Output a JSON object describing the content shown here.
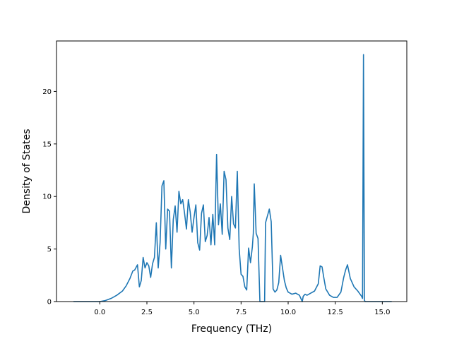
{
  "chart_data": {
    "type": "line",
    "title": "",
    "xlabel": "Frequency (THz)",
    "ylabel": "Density of States",
    "xlim": [
      -2.3,
      16.3
    ],
    "ylim": [
      0,
      24.8
    ],
    "grid": false,
    "xticks": [
      "0.0",
      "2.5",
      "5.0",
      "7.5",
      "10.0",
      "12.5",
      "15.0"
    ],
    "xtick_values": [
      0,
      2.5,
      5,
      7.5,
      10,
      12.5,
      15
    ],
    "yticks": [
      "0",
      "5",
      "10",
      "15",
      "20"
    ],
    "ytick_values": [
      0,
      5,
      10,
      15,
      20
    ],
    "series": [
      {
        "color": "#1f77b4",
        "x": [
          -1.4,
          -0.5,
          0.0,
          0.3,
          0.6,
          0.9,
          1.2,
          1.4,
          1.6,
          1.75,
          1.85,
          2.0,
          2.1,
          2.2,
          2.3,
          2.4,
          2.5,
          2.6,
          2.7,
          2.8,
          2.9,
          3.0,
          3.1,
          3.2,
          3.3,
          3.4,
          3.5,
          3.6,
          3.7,
          3.8,
          3.9,
          4.0,
          4.1,
          4.2,
          4.3,
          4.4,
          4.5,
          4.6,
          4.7,
          4.8,
          4.9,
          5.0,
          5.1,
          5.2,
          5.3,
          5.4,
          5.5,
          5.6,
          5.7,
          5.8,
          5.9,
          6.0,
          6.1,
          6.2,
          6.3,
          6.4,
          6.5,
          6.6,
          6.7,
          6.8,
          6.9,
          7.0,
          7.1,
          7.2,
          7.3,
          7.4,
          7.5,
          7.6,
          7.7,
          7.8,
          7.9,
          8.0,
          8.1,
          8.15,
          8.2,
          8.3,
          8.4,
          8.5,
          8.6,
          8.7,
          8.75,
          8.8,
          9.0,
          9.1,
          9.2,
          9.3,
          9.4,
          9.5,
          9.6,
          9.7,
          9.8,
          9.9,
          10.0,
          10.2,
          10.4,
          10.6,
          10.75,
          10.8,
          10.9,
          11.0,
          11.1,
          11.2,
          11.4,
          11.6,
          11.7,
          11.8,
          11.9,
          12.0,
          12.2,
          12.4,
          12.6,
          12.8,
          12.95,
          13.05,
          13.15,
          13.3,
          13.5,
          13.7,
          13.9,
          13.95,
          14.0,
          14.05,
          14.1,
          15.5
        ],
        "values": [
          0.0,
          0.0,
          0.0,
          0.1,
          0.3,
          0.6,
          1.0,
          1.5,
          2.2,
          2.9,
          3.0,
          3.5,
          1.4,
          2.0,
          4.2,
          3.2,
          3.7,
          3.4,
          2.3,
          3.6,
          4.2,
          7.5,
          3.2,
          5.6,
          11.0,
          11.5,
          5.0,
          8.8,
          8.6,
          3.2,
          7.8,
          9.1,
          6.6,
          10.5,
          9.3,
          9.7,
          8.4,
          6.9,
          9.7,
          8.5,
          6.6,
          8.0,
          9.2,
          5.6,
          4.9,
          8.4,
          9.2,
          5.7,
          6.3,
          8.0,
          5.4,
          8.3,
          5.4,
          14.0,
          7.3,
          9.3,
          6.4,
          12.4,
          11.6,
          7.0,
          5.9,
          10.0,
          7.4,
          7.0,
          12.4,
          5.0,
          2.6,
          2.4,
          1.4,
          1.1,
          5.1,
          3.7,
          5.2,
          6.5,
          11.2,
          6.5,
          6.0,
          0.0,
          0.0,
          0.0,
          0.0,
          7.5,
          8.8,
          7.6,
          1.2,
          0.9,
          1.1,
          1.8,
          4.4,
          3.2,
          2.0,
          1.3,
          0.9,
          0.7,
          0.8,
          0.6,
          0.0,
          0.5,
          0.7,
          0.6,
          0.7,
          0.8,
          1.0,
          1.7,
          3.4,
          3.3,
          2.2,
          1.2,
          0.6,
          0.4,
          0.4,
          0.9,
          2.3,
          3.0,
          3.5,
          2.2,
          1.4,
          1.0,
          0.5,
          0.3,
          23.5,
          0.1,
          0.0,
          0.0
        ]
      }
    ]
  }
}
